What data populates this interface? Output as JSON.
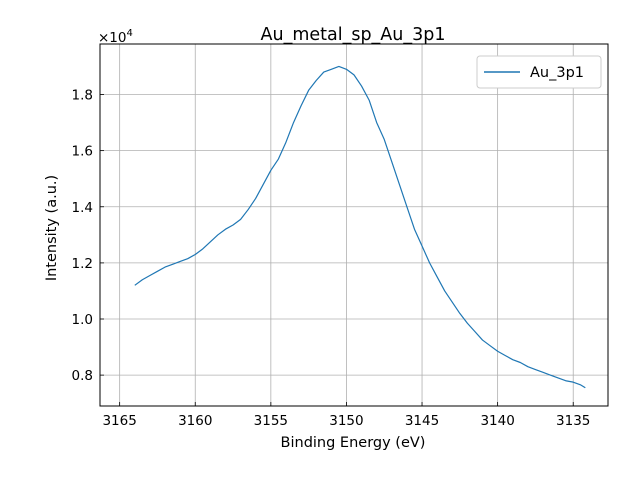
{
  "chart_data": {
    "type": "line",
    "title": "Au_metal_sp_Au_3p1",
    "xlabel": "Binding Energy (eV)",
    "ylabel": "Intensity (a.u.)",
    "y_multiplier_base": "×10",
    "y_multiplier_exp": "4",
    "x_inverted": true,
    "xlim": [
      3166.3,
      3132.7
    ],
    "ylim": [
      6900,
      19800
    ],
    "x_ticks": [
      3165,
      3160,
      3155,
      3150,
      3145,
      3140,
      3135
    ],
    "x_tick_labels": [
      "3165",
      "3160",
      "3155",
      "3150",
      "3145",
      "3140",
      "3135"
    ],
    "y_ticks": [
      8000,
      10000,
      12000,
      14000,
      16000,
      18000
    ],
    "y_tick_labels": [
      "0.8",
      "1.0",
      "1.2",
      "1.4",
      "1.6",
      "1.8"
    ],
    "grid": true,
    "legend_position": "top-right",
    "series": [
      {
        "name": "Au_3p1",
        "color": "#1f77b4",
        "x": [
          3164.0,
          3163.5,
          3163.0,
          3162.5,
          3162.0,
          3161.5,
          3161.0,
          3160.5,
          3160.0,
          3159.5,
          3159.0,
          3158.5,
          3158.0,
          3157.5,
          3157.0,
          3156.5,
          3156.0,
          3155.5,
          3155.0,
          3154.5,
          3154.0,
          3153.5,
          3153.0,
          3152.5,
          3152.0,
          3151.5,
          3151.0,
          3150.5,
          3150.0,
          3149.5,
          3149.0,
          3148.5,
          3148.0,
          3147.5,
          3147.0,
          3146.5,
          3146.0,
          3145.5,
          3145.0,
          3144.5,
          3144.0,
          3143.5,
          3143.0,
          3142.5,
          3142.0,
          3141.5,
          3141.0,
          3140.5,
          3140.0,
          3139.5,
          3139.0,
          3138.5,
          3138.0,
          3137.5,
          3137.0,
          3136.5,
          3136.0,
          3135.5,
          3135.0,
          3134.5,
          3134.2
        ],
        "y": [
          11200,
          11400,
          11550,
          11700,
          11850,
          11950,
          12050,
          12150,
          12300,
          12500,
          12750,
          13000,
          13200,
          13350,
          13550,
          13900,
          14300,
          14800,
          15300,
          15700,
          16300,
          17000,
          17600,
          18150,
          18500,
          18800,
          18900,
          19000,
          18900,
          18700,
          18300,
          17800,
          17000,
          16400,
          15600,
          14800,
          14000,
          13200,
          12600,
          12000,
          11500,
          11000,
          10600,
          10200,
          9850,
          9550,
          9250,
          9050,
          8850,
          8700,
          8550,
          8450,
          8300,
          8200,
          8100,
          8000,
          7900,
          7800,
          7750,
          7650,
          7550
        ]
      }
    ]
  }
}
